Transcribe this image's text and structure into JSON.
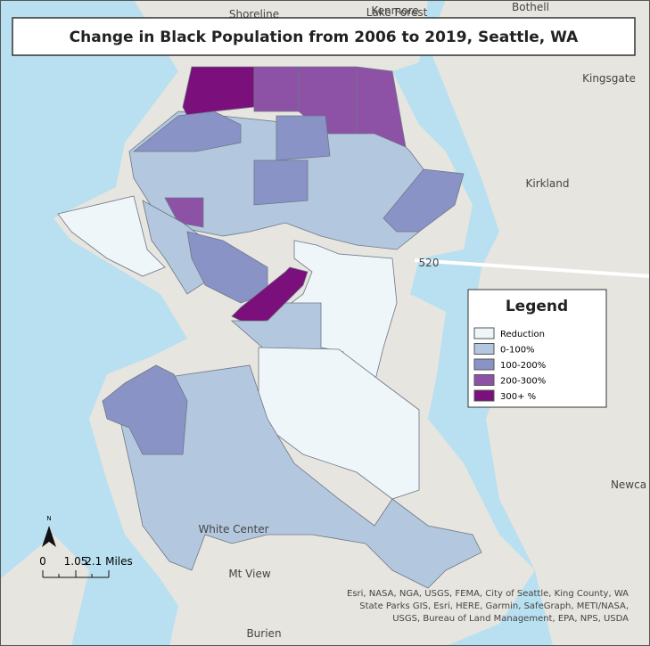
{
  "title": "Change in Black Population from 2006 to 2019, Seattle, WA",
  "legend": {
    "title": "Legend",
    "items": [
      {
        "label": "Reduction",
        "color": "#eef6f9"
      },
      {
        "label": "0-100%",
        "color": "#b3c8de"
      },
      {
        "label": "100-200%",
        "color": "#8a93c6"
      },
      {
        "label": "200-300%",
        "color": "#8d52a6"
      },
      {
        "label": "300+ %",
        "color": "#7b0f7c"
      }
    ]
  },
  "scale_bar": {
    "north": "N",
    "labels": [
      "0",
      "1.05",
      "2.1 Miles"
    ]
  },
  "place_labels": [
    "Shoreline",
    "Lake Forest",
    "Kenmore",
    "Bothell",
    "Kingsgate",
    "Kirkland",
    "520",
    "Newca",
    "White Center",
    "Mt View",
    "Burien"
  ],
  "attribution": "Esri, NASA, NGA, USGS, FEMA, City of Seattle, King County, WA State Parks GIS, Esri, HERE, Garmin, SafeGraph, METI/NASA, USGS, Bureau of Land Management, EPA, NPS, USDA"
}
